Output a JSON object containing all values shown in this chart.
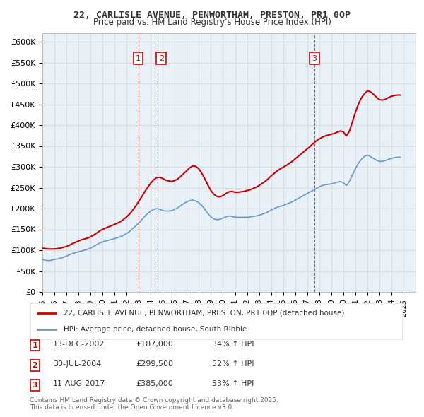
{
  "title1": "22, CARLISLE AVENUE, PENWORTHAM, PRESTON, PR1 0QP",
  "title2": "Price paid vs. HM Land Registry's House Price Index (HPI)",
  "ylabel": "",
  "yticks": [
    0,
    50000,
    100000,
    150000,
    200000,
    250000,
    300000,
    350000,
    400000,
    450000,
    500000,
    550000,
    600000
  ],
  "ytick_labels": [
    "£0",
    "£50K",
    "£100K",
    "£150K",
    "£200K",
    "£250K",
    "£300K",
    "£350K",
    "£400K",
    "£450K",
    "£500K",
    "£550K",
    "£600K"
  ],
  "xmin": 1995.0,
  "xmax": 2026.0,
  "ymin": 0,
  "ymax": 620000,
  "purchase_color": "#cc0000",
  "hpi_color": "#6699cc",
  "vline_color": "#cc0000",
  "vline_alpha": 0.5,
  "grid_color": "#dddddd",
  "bg_color": "#e8f0f8",
  "purchases": [
    {
      "year": 2002.96,
      "price": 187000,
      "label": "1"
    },
    {
      "year": 2004.58,
      "price": 299500,
      "label": "2"
    },
    {
      "year": 2017.61,
      "price": 385000,
      "label": "3"
    }
  ],
  "legend_line1": "22, CARLISLE AVENUE, PENWORTHAM, PRESTON, PR1 0QP (detached house)",
  "legend_line2": "HPI: Average price, detached house, South Ribble",
  "table_rows": [
    {
      "num": "1",
      "date": "13-DEC-2002",
      "price": "£187,000",
      "hpi": "34% ↑ HPI"
    },
    {
      "num": "2",
      "date": "30-JUL-2004",
      "price": "£299,500",
      "hpi": "52% ↑ HPI"
    },
    {
      "num": "3",
      "date": "11-AUG-2017",
      "price": "£385,000",
      "hpi": "53% ↑ HPI"
    }
  ],
  "footnote": "Contains HM Land Registry data © Crown copyright and database right 2025.\nThis data is licensed under the Open Government Licence v3.0.",
  "hpi_data": {
    "years": [
      1995.0,
      1995.25,
      1995.5,
      1995.75,
      1996.0,
      1996.25,
      1996.5,
      1996.75,
      1997.0,
      1997.25,
      1997.5,
      1997.75,
      1998.0,
      1998.25,
      1998.5,
      1998.75,
      1999.0,
      1999.25,
      1999.5,
      1999.75,
      2000.0,
      2000.25,
      2000.5,
      2000.75,
      2001.0,
      2001.25,
      2001.5,
      2001.75,
      2002.0,
      2002.25,
      2002.5,
      2002.75,
      2003.0,
      2003.25,
      2003.5,
      2003.75,
      2004.0,
      2004.25,
      2004.5,
      2004.75,
      2005.0,
      2005.25,
      2005.5,
      2005.75,
      2006.0,
      2006.25,
      2006.5,
      2006.75,
      2007.0,
      2007.25,
      2007.5,
      2007.75,
      2008.0,
      2008.25,
      2008.5,
      2008.75,
      2009.0,
      2009.25,
      2009.5,
      2009.75,
      2010.0,
      2010.25,
      2010.5,
      2010.75,
      2011.0,
      2011.25,
      2011.5,
      2011.75,
      2012.0,
      2012.25,
      2012.5,
      2012.75,
      2013.0,
      2013.25,
      2013.5,
      2013.75,
      2014.0,
      2014.25,
      2014.5,
      2014.75,
      2015.0,
      2015.25,
      2015.5,
      2015.75,
      2016.0,
      2016.25,
      2016.5,
      2016.75,
      2017.0,
      2017.25,
      2017.5,
      2017.75,
      2018.0,
      2018.25,
      2018.5,
      2018.75,
      2019.0,
      2019.25,
      2019.5,
      2019.75,
      2020.0,
      2020.25,
      2020.5,
      2020.75,
      2021.0,
      2021.25,
      2021.5,
      2021.75,
      2022.0,
      2022.25,
      2022.5,
      2022.75,
      2023.0,
      2023.25,
      2023.5,
      2023.75,
      2024.0,
      2024.25,
      2024.5,
      2024.75
    ],
    "values": [
      78000,
      76000,
      75000,
      76000,
      78000,
      79000,
      81000,
      83000,
      86000,
      89000,
      92000,
      94000,
      96000,
      98000,
      100000,
      102000,
      105000,
      109000,
      113000,
      117000,
      120000,
      122000,
      124000,
      126000,
      128000,
      130000,
      133000,
      136000,
      140000,
      145000,
      152000,
      158000,
      165000,
      173000,
      181000,
      188000,
      194000,
      198000,
      200000,
      198000,
      195000,
      194000,
      194000,
      195000,
      198000,
      202000,
      207000,
      212000,
      216000,
      219000,
      220000,
      218000,
      214000,
      207000,
      198000,
      188000,
      180000,
      175000,
      173000,
      174000,
      177000,
      180000,
      182000,
      181000,
      179000,
      179000,
      179000,
      179000,
      179000,
      180000,
      181000,
      182000,
      184000,
      186000,
      189000,
      192000,
      196000,
      200000,
      203000,
      205000,
      207000,
      210000,
      213000,
      216000,
      220000,
      224000,
      228000,
      232000,
      236000,
      240000,
      244000,
      248000,
      252000,
      255000,
      257000,
      258000,
      259000,
      261000,
      263000,
      265000,
      262000,
      255000,
      265000,
      280000,
      295000,
      308000,
      318000,
      325000,
      328000,
      325000,
      320000,
      316000,
      313000,
      313000,
      315000,
      318000,
      320000,
      322000,
      323000,
      323000
    ]
  },
  "price_data": {
    "years": [
      1995.0,
      1995.25,
      1995.5,
      1995.75,
      1996.0,
      1996.25,
      1996.5,
      1996.75,
      1997.0,
      1997.25,
      1997.5,
      1997.75,
      1998.0,
      1998.25,
      1998.5,
      1998.75,
      1999.0,
      1999.25,
      1999.5,
      1999.75,
      2000.0,
      2000.25,
      2000.5,
      2000.75,
      2001.0,
      2001.25,
      2001.5,
      2001.75,
      2002.0,
      2002.25,
      2002.5,
      2002.75,
      2003.0,
      2003.25,
      2003.5,
      2003.75,
      2004.0,
      2004.25,
      2004.5,
      2004.75,
      2005.0,
      2005.25,
      2005.5,
      2005.75,
      2006.0,
      2006.25,
      2006.5,
      2006.75,
      2007.0,
      2007.25,
      2007.5,
      2007.75,
      2008.0,
      2008.25,
      2008.5,
      2008.75,
      2009.0,
      2009.25,
      2009.5,
      2009.75,
      2010.0,
      2010.25,
      2010.5,
      2010.75,
      2011.0,
      2011.25,
      2011.5,
      2011.75,
      2012.0,
      2012.25,
      2012.5,
      2012.75,
      2013.0,
      2013.25,
      2013.5,
      2013.75,
      2014.0,
      2014.25,
      2014.5,
      2014.75,
      2015.0,
      2015.25,
      2015.5,
      2015.75,
      2016.0,
      2016.25,
      2016.5,
      2016.75,
      2017.0,
      2017.25,
      2017.5,
      2017.75,
      2018.0,
      2018.25,
      2018.5,
      2018.75,
      2019.0,
      2019.25,
      2019.5,
      2019.75,
      2020.0,
      2020.25,
      2020.5,
      2020.75,
      2021.0,
      2021.25,
      2021.5,
      2021.75,
      2022.0,
      2022.25,
      2022.5,
      2022.75,
      2023.0,
      2023.25,
      2023.5,
      2023.75,
      2024.0,
      2024.25,
      2024.5,
      2024.75
    ],
    "values": [
      105000,
      104000,
      103000,
      103000,
      103000,
      104000,
      105000,
      107000,
      109000,
      112000,
      116000,
      119000,
      122000,
      125000,
      127000,
      129000,
      132000,
      136000,
      141000,
      146000,
      150000,
      153000,
      156000,
      159000,
      162000,
      165000,
      169000,
      174000,
      180000,
      187000,
      196000,
      206000,
      217000,
      228000,
      240000,
      251000,
      261000,
      269000,
      274000,
      275000,
      272000,
      268000,
      266000,
      265000,
      267000,
      271000,
      277000,
      284000,
      291000,
      298000,
      302000,
      301000,
      295000,
      284000,
      271000,
      256000,
      243000,
      234000,
      229000,
      228000,
      231000,
      236000,
      240000,
      241000,
      239000,
      239000,
      240000,
      241000,
      243000,
      245000,
      248000,
      251000,
      255000,
      260000,
      265000,
      271000,
      278000,
      284000,
      290000,
      295000,
      299000,
      303000,
      308000,
      313000,
      319000,
      325000,
      331000,
      337000,
      343000,
      349000,
      356000,
      362000,
      367000,
      371000,
      374000,
      376000,
      378000,
      380000,
      383000,
      386000,
      384000,
      374000,
      385000,
      407000,
      430000,
      450000,
      465000,
      475000,
      482000,
      480000,
      474000,
      467000,
      461000,
      460000,
      462000,
      466000,
      469000,
      471000,
      472000,
      472000
    ]
  }
}
